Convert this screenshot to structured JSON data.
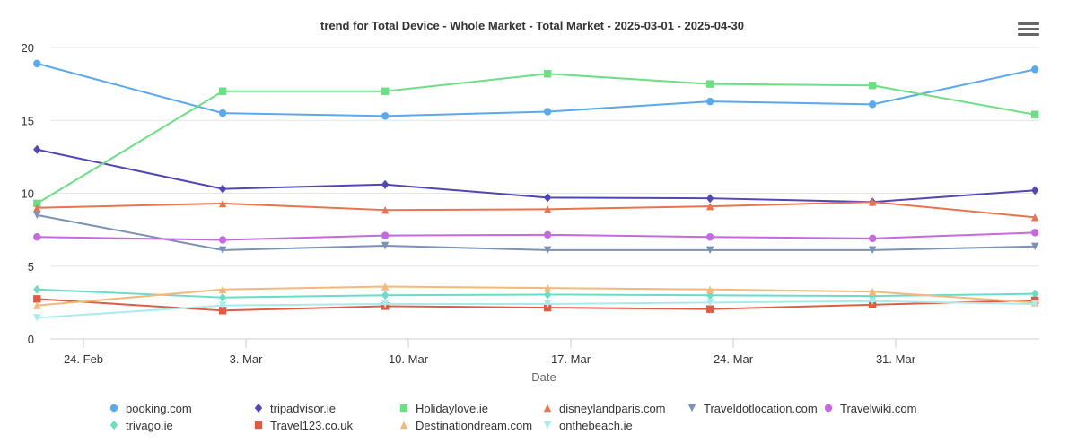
{
  "menu_icon": "hamburger-menu-icon",
  "chart_data": {
    "type": "line",
    "title": "trend for Total Device - Whole Market - Total Market - 2025-03-01 - 2025-04-30",
    "xlabel": "Date",
    "ylabel": "",
    "ylim": [
      0,
      20
    ],
    "yticks": [
      "0",
      "5",
      "10",
      "15",
      "20"
    ],
    "xticks": [
      "24. Feb",
      "3. Mar",
      "10. Mar",
      "17. Mar",
      "24. Mar",
      "31. Mar"
    ],
    "x": [
      "2025-02-22",
      "2025-03-02",
      "2025-03-09",
      "2025-03-16",
      "2025-03-23",
      "2025-03-30",
      "2025-04-06"
    ],
    "grid": "horizontal",
    "legend_position": "bottom",
    "series": [
      {
        "name": "booking.com",
        "color": "#5aa9ee",
        "marker": "circle",
        "values": [
          18.9,
          15.5,
          15.3,
          15.6,
          16.3,
          16.1,
          18.5
        ]
      },
      {
        "name": "tripadvisor.ie",
        "color": "#5046b4",
        "marker": "diamond",
        "values": [
          13.0,
          10.3,
          10.6,
          9.7,
          9.65,
          9.4,
          10.2
        ]
      },
      {
        "name": "Holidaylove.ie",
        "color": "#6ede85",
        "marker": "square",
        "values": [
          9.3,
          17.0,
          17.0,
          18.2,
          17.5,
          17.4,
          15.4
        ]
      },
      {
        "name": "disneylandparis.com",
        "color": "#e8744e",
        "marker": "triangle",
        "values": [
          9.0,
          9.3,
          8.85,
          8.9,
          9.1,
          9.4,
          8.35
        ]
      },
      {
        "name": "Traveldotlocation.com",
        "color": "#7a92b8",
        "marker": "triangle-down",
        "values": [
          8.5,
          6.1,
          6.4,
          6.1,
          6.1,
          6.1,
          6.35
        ]
      },
      {
        "name": "Travelwiki.com",
        "color": "#c46ae0",
        "marker": "circle",
        "values": [
          7.0,
          6.8,
          7.1,
          7.15,
          7.0,
          6.9,
          7.3
        ]
      },
      {
        "name": "trivago.ie",
        "color": "#6bdcc6",
        "marker": "diamond",
        "values": [
          3.4,
          2.85,
          3.0,
          3.05,
          3.0,
          2.95,
          3.1
        ]
      },
      {
        "name": "Travel123.co.uk",
        "color": "#e05a44",
        "marker": "square",
        "values": [
          2.75,
          1.95,
          2.25,
          2.15,
          2.05,
          2.35,
          2.65
        ]
      },
      {
        "name": "Destinationdream.com",
        "color": "#f4b87a",
        "marker": "triangle",
        "values": [
          2.3,
          3.4,
          3.6,
          3.5,
          3.4,
          3.25,
          2.5
        ]
      },
      {
        "name": "onthebeach.ie",
        "color": "#a8ecea",
        "marker": "triangle-down",
        "values": [
          1.45,
          2.3,
          2.4,
          2.4,
          2.5,
          2.6,
          2.4
        ]
      }
    ]
  }
}
